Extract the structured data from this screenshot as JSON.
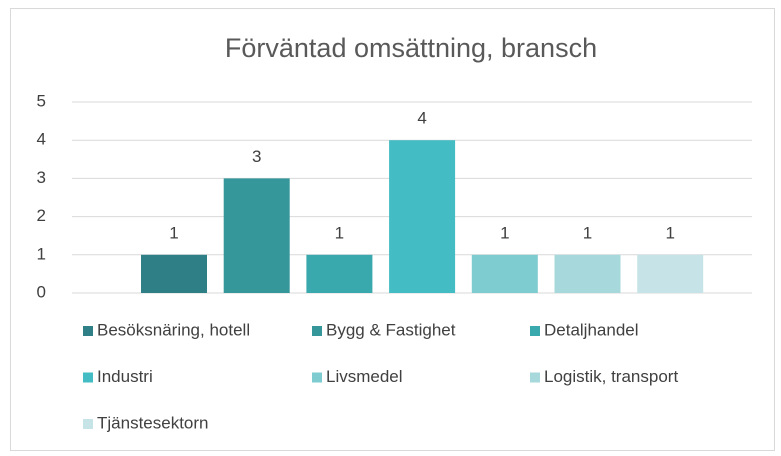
{
  "chart_data": {
    "type": "bar",
    "title": "Förväntad omsättning, bransch",
    "series": [
      {
        "name": "Besöksnäring, hotell",
        "color": "#2e7f86",
        "values": [
          1
        ]
      },
      {
        "name": "Bygg & Fastighet",
        "color": "#36979b",
        "values": [
          3
        ]
      },
      {
        "name": "Detaljhandel",
        "color": "#3aa9ae",
        "values": [
          1
        ]
      },
      {
        "name": "Industri",
        "color": "#43bcc3",
        "values": [
          4
        ]
      },
      {
        "name": "Livsmedel",
        "color": "#7ecbd0",
        "values": [
          1
        ]
      },
      {
        "name": "Logistik, transport",
        "color": "#a6d8dc",
        "values": [
          1
        ]
      },
      {
        "name": "Tjänstesektorn",
        "color": "#c6e4e7",
        "values": [
          1
        ]
      }
    ],
    "ylim": [
      0,
      5
    ],
    "yticks": [
      0,
      1,
      2,
      3,
      4,
      5
    ],
    "grid": true,
    "legend": "bottom"
  }
}
